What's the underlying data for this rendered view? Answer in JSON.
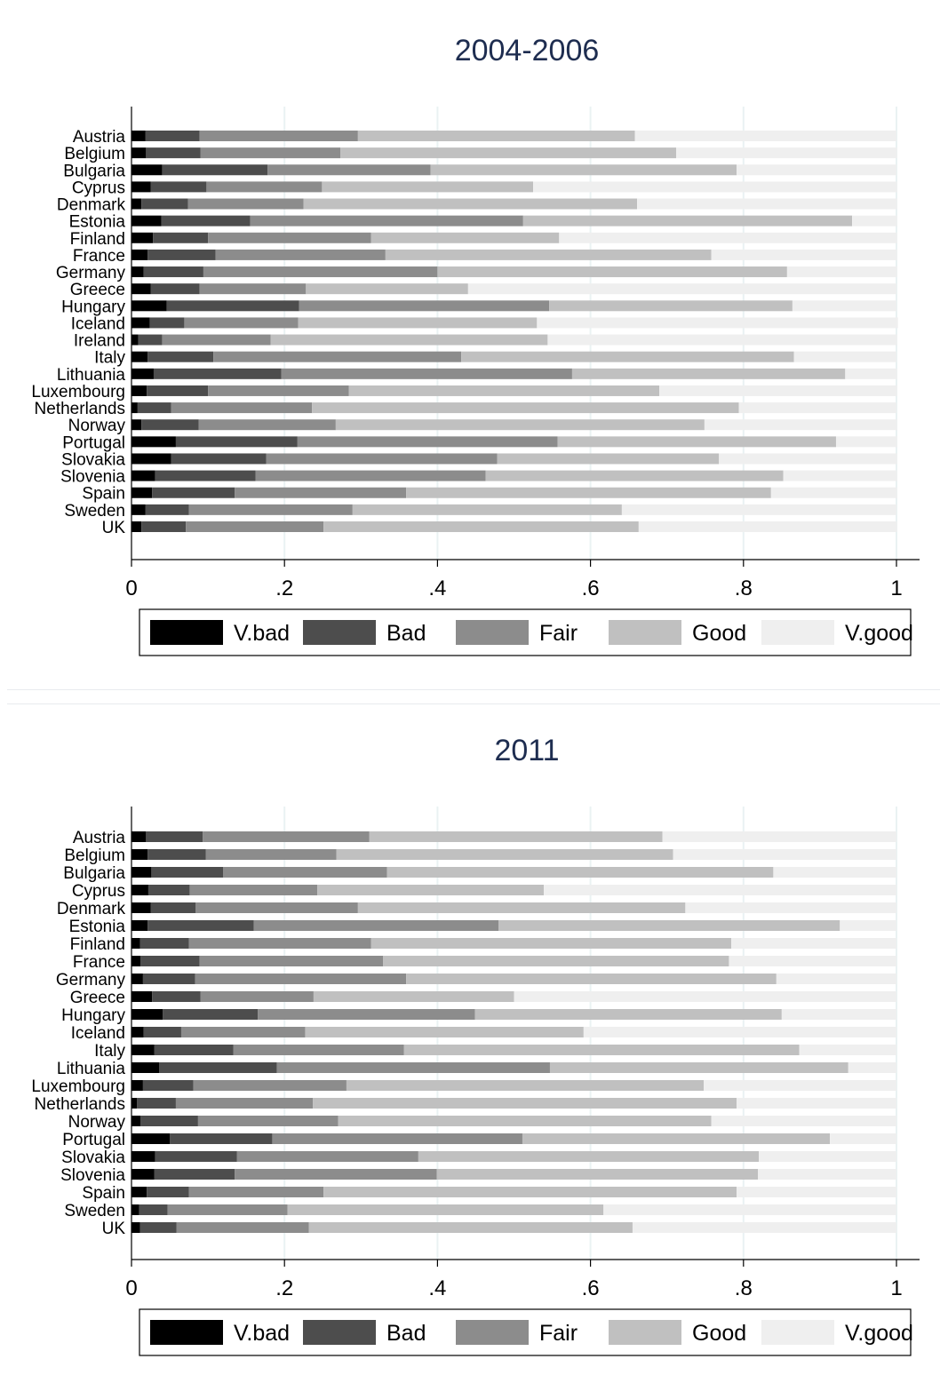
{
  "colors": {
    "title": "#1e2d50",
    "axis": "#000000",
    "grid": "#eaf2f3",
    "v_bad": "#000000",
    "bad": "#4d4d4d",
    "fair": "#8c8c8c",
    "good": "#c0c0c0",
    "v_good": "#efefef"
  },
  "chart_data": [
    {
      "type": "bar",
      "orientation": "horizontal",
      "stacked": true,
      "title": "2004-2006",
      "xlim": [
        0,
        1
      ],
      "xticks": [
        "0",
        ".2",
        ".4",
        ".6",
        ".8",
        "1"
      ],
      "xtick_values": [
        0,
        0.2,
        0.4,
        0.6,
        0.8,
        1
      ],
      "grid": "vertical",
      "legend": "bottom",
      "categories": [
        "Austria",
        "Belgium",
        "Bulgaria",
        "Cyprus",
        "Denmark",
        "Estonia",
        "Finland",
        "France",
        "Germany",
        "Greece",
        "Hungary",
        "Iceland",
        "Ireland",
        "Italy",
        "Lithuania",
        "Luxembourg",
        "Netherlands",
        "Norway",
        "Portugal",
        "Slovakia",
        "Slovenia",
        "Spain",
        "Sweden",
        "UK"
      ],
      "series": [
        {
          "name": "V.bad",
          "color": "#000000",
          "values": [
            0.018,
            0.019,
            0.04,
            0.025,
            0.013,
            0.039,
            0.028,
            0.021,
            0.016,
            0.025,
            0.046,
            0.024,
            0.009,
            0.021,
            0.029,
            0.02,
            0.008,
            0.013,
            0.058,
            0.052,
            0.031,
            0.027,
            0.018,
            0.013
          ]
        },
        {
          "name": "Bad",
          "color": "#4d4d4d",
          "values": [
            0.071,
            0.071,
            0.138,
            0.073,
            0.061,
            0.116,
            0.072,
            0.089,
            0.078,
            0.064,
            0.173,
            0.045,
            0.031,
            0.086,
            0.167,
            0.08,
            0.044,
            0.075,
            0.159,
            0.124,
            0.131,
            0.108,
            0.057,
            0.058
          ]
        },
        {
          "name": "Fair",
          "color": "#8c8c8c",
          "values": [
            0.207,
            0.183,
            0.213,
            0.151,
            0.151,
            0.357,
            0.213,
            0.222,
            0.306,
            0.139,
            0.327,
            0.149,
            0.142,
            0.324,
            0.38,
            0.184,
            0.184,
            0.179,
            0.34,
            0.302,
            0.301,
            0.224,
            0.214,
            0.18
          ]
        },
        {
          "name": "Good",
          "color": "#c0c0c0",
          "values": [
            0.362,
            0.439,
            0.4,
            0.276,
            0.436,
            0.43,
            0.246,
            0.426,
            0.457,
            0.212,
            0.318,
            0.312,
            0.362,
            0.435,
            0.357,
            0.406,
            0.558,
            0.482,
            0.364,
            0.29,
            0.389,
            0.477,
            0.352,
            0.412
          ]
        },
        {
          "name": "V.good",
          "color": "#efefef",
          "values": [
            0.342,
            0.289,
            0.209,
            0.476,
            0.34,
            0.059,
            0.442,
            0.243,
            0.144,
            0.56,
            0.136,
            0.472,
            0.457,
            0.134,
            0.068,
            0.311,
            0.206,
            0.252,
            0.08,
            0.233,
            0.149,
            0.165,
            0.359,
            0.338
          ]
        }
      ]
    },
    {
      "type": "bar",
      "orientation": "horizontal",
      "stacked": true,
      "title": "2011",
      "xlim": [
        0,
        1
      ],
      "xticks": [
        "0",
        ".2",
        ".4",
        ".6",
        ".8",
        "1"
      ],
      "xtick_values": [
        0,
        0.2,
        0.4,
        0.6,
        0.8,
        1
      ],
      "grid": "vertical",
      "legend": "bottom",
      "categories": [
        "Austria",
        "Belgium",
        "Bulgaria",
        "Cyprus",
        "Denmark",
        "Estonia",
        "Finland",
        "France",
        "Germany",
        "Greece",
        "Hungary",
        "Iceland",
        "Italy",
        "Lithuania",
        "Luxembourg",
        "Netherlands",
        "Norway",
        "Portugal",
        "Slovakia",
        "Slovenia",
        "Spain",
        "Sweden",
        "UK"
      ],
      "series": [
        {
          "name": "V.bad",
          "color": "#000000",
          "values": [
            0.019,
            0.021,
            0.026,
            0.022,
            0.025,
            0.021,
            0.011,
            0.012,
            0.015,
            0.027,
            0.041,
            0.016,
            0.03,
            0.036,
            0.015,
            0.007,
            0.012,
            0.05,
            0.031,
            0.03,
            0.02,
            0.01,
            0.011
          ]
        },
        {
          "name": "Bad",
          "color": "#4d4d4d",
          "values": [
            0.074,
            0.076,
            0.094,
            0.054,
            0.059,
            0.139,
            0.064,
            0.077,
            0.068,
            0.063,
            0.124,
            0.049,
            0.103,
            0.154,
            0.066,
            0.051,
            0.075,
            0.134,
            0.107,
            0.105,
            0.055,
            0.037,
            0.048
          ]
        },
        {
          "name": "Fair",
          "color": "#8c8c8c",
          "values": [
            0.218,
            0.171,
            0.214,
            0.167,
            0.212,
            0.32,
            0.238,
            0.24,
            0.276,
            0.148,
            0.284,
            0.162,
            0.223,
            0.357,
            0.2,
            0.179,
            0.183,
            0.327,
            0.237,
            0.264,
            0.176,
            0.157,
            0.173
          ]
        },
        {
          "name": "Good",
          "color": "#c0c0c0",
          "values": [
            0.383,
            0.44,
            0.505,
            0.296,
            0.428,
            0.446,
            0.471,
            0.452,
            0.484,
            0.262,
            0.401,
            0.364,
            0.517,
            0.39,
            0.467,
            0.554,
            0.488,
            0.402,
            0.445,
            0.42,
            0.54,
            0.413,
            0.423
          ]
        },
        {
          "name": "V.good",
          "color": "#efefef",
          "values": [
            0.306,
            0.292,
            0.161,
            0.461,
            0.276,
            0.074,
            0.216,
            0.219,
            0.157,
            0.5,
            0.15,
            0.409,
            0.127,
            0.063,
            0.252,
            0.209,
            0.242,
            0.087,
            0.18,
            0.181,
            0.209,
            0.383,
            0.345
          ]
        }
      ]
    }
  ]
}
